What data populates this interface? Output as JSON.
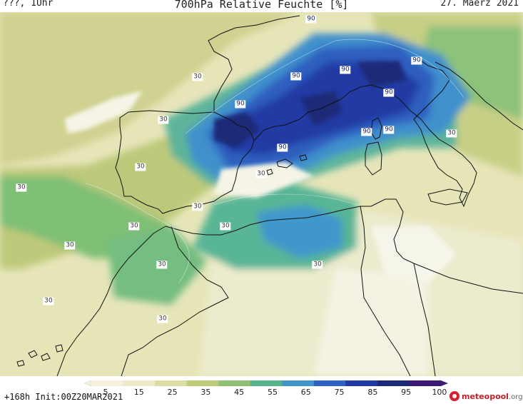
{
  "header": {
    "left": "???, 1Uhr",
    "title": "700hPa Relative Feuchte [%]",
    "date": "27. Maerz 2021"
  },
  "footer": {
    "init": "+168h  Init:00Z20MAR2021",
    "logo_main": "meteopool",
    "logo_tld": ".org"
  },
  "legend": {
    "labels": [
      "5",
      "15",
      "25",
      "35",
      "45",
      "55",
      "65",
      "75",
      "85",
      "95",
      "100"
    ],
    "colors": [
      "#f4f2dd",
      "#ecebc6",
      "#dcdca4",
      "#bfca7a",
      "#8fc074",
      "#57b48e",
      "#3f97cc",
      "#2f62c2",
      "#223aa4",
      "#1c2a78",
      "#3a1a74"
    ]
  },
  "contour_labels": {
    "c90": "90",
    "c30": "30"
  }
}
